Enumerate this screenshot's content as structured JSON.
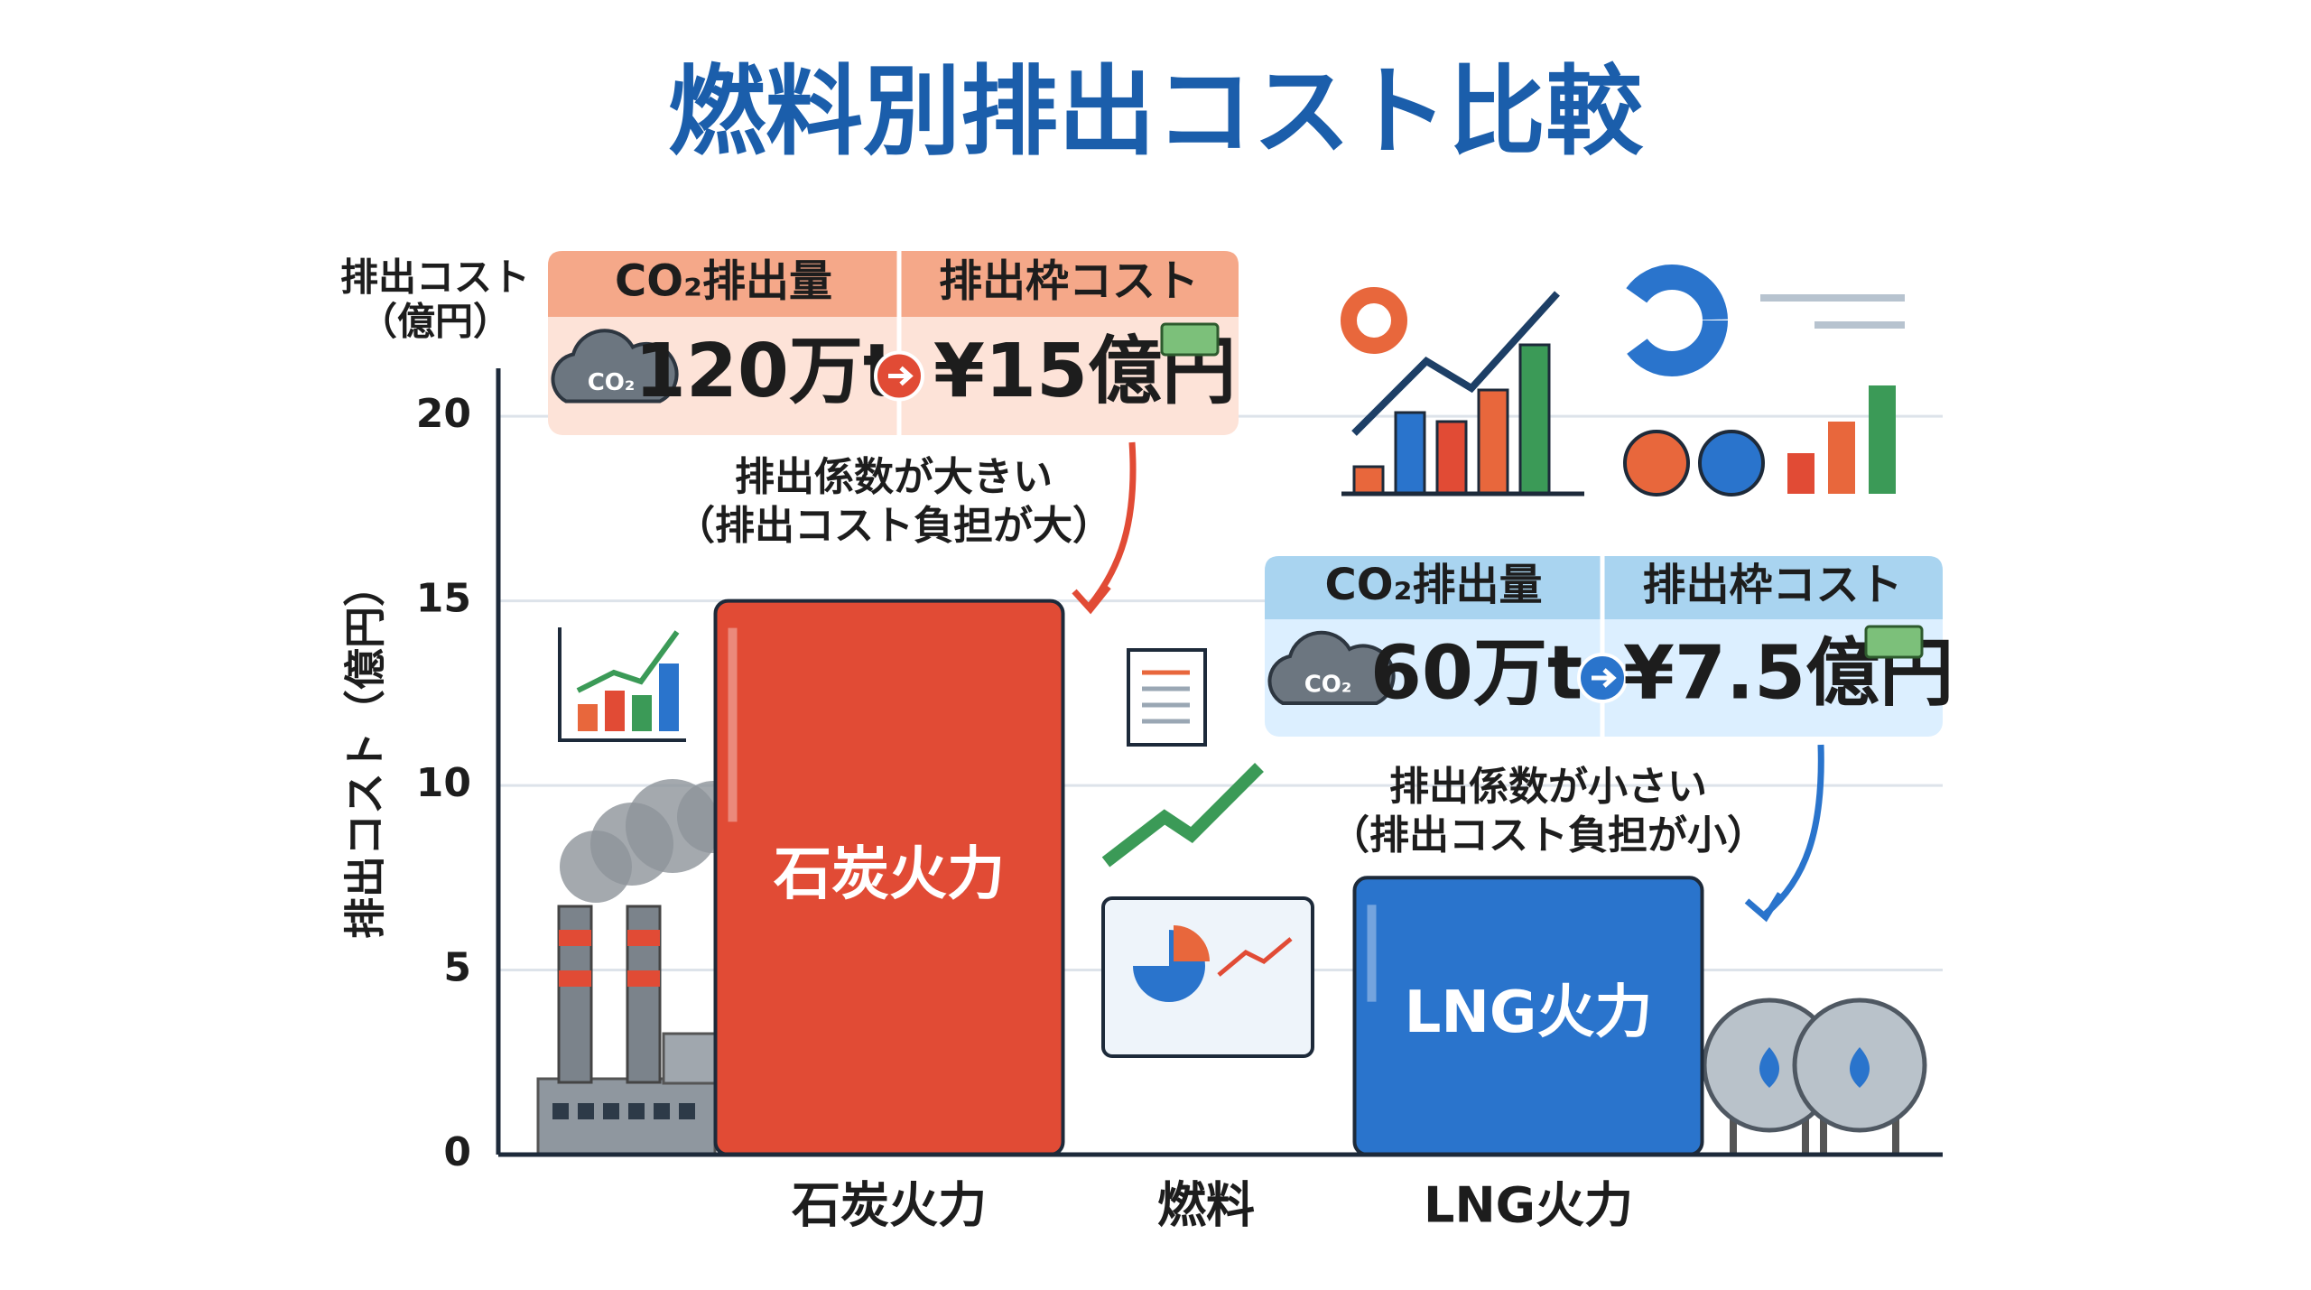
{
  "chart_data": {
    "type": "bar",
    "title": "燃料別排出コスト比較",
    "y_unit_label": [
      "排出コスト",
      "（億円）"
    ],
    "y_label": "排出コスト（億円）",
    "x_label": "燃料",
    "categories": [
      "石炭火力",
      "LNG火力"
    ],
    "values": [
      15,
      7.5
    ],
    "colors": [
      "#e14b35",
      "#2a74cc"
    ],
    "ylim": [
      0,
      21.3
    ],
    "yticks": [
      0,
      5,
      10,
      15,
      20
    ],
    "grid": true,
    "annotations": [
      {
        "header": [
          "CO₂排出量",
          "排出枠コスト"
        ],
        "icon": "CO₂",
        "amount": "120万t",
        "cost": "¥15億円",
        "note": [
          "排出係数が大きい",
          "（排出コスト負担が大）"
        ]
      },
      {
        "header": [
          "CO₂排出量",
          "排出枠コスト"
        ],
        "icon": "CO₂",
        "amount": "60万t",
        "cost": "¥7.5億円",
        "note": [
          "排出係数が小さい",
          "（排出コスト負担が小）"
        ]
      }
    ]
  }
}
